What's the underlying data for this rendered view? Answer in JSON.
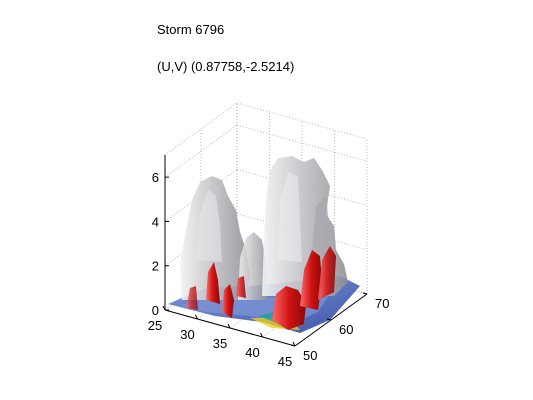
{
  "chart_data": {
    "type": "surface3d",
    "title": "Storm 6796",
    "subtitle": "(U,V) (0.87758,-2.5214)",
    "x_axis": {
      "range": [
        25,
        45
      ],
      "ticks": [
        "25",
        "30",
        "35",
        "40",
        "45"
      ]
    },
    "y_axis": {
      "range": [
        50,
        70
      ],
      "ticks": [
        "50",
        "60",
        "70"
      ]
    },
    "z_axis": {
      "range": [
        0,
        7
      ],
      "ticks": [
        "0",
        "2",
        "4",
        "6"
      ]
    },
    "grid": true,
    "colors": {
      "cloud": "#c8c8cc",
      "core": "#d01818",
      "ground": "#2a4aa8",
      "grid": "#9a9a9a"
    }
  }
}
